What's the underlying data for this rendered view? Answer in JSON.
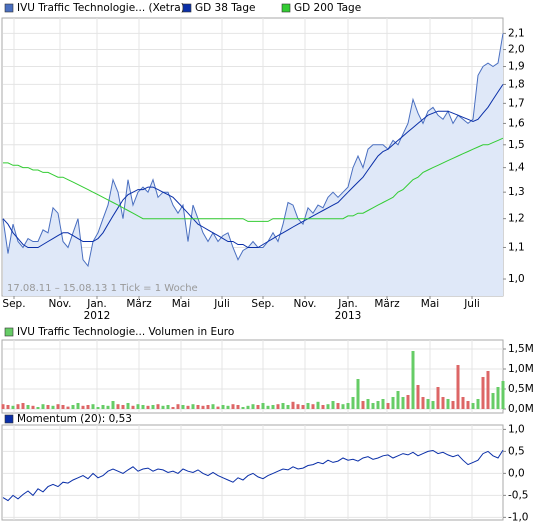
{
  "chart_data": [
    {
      "type": "line",
      "log_scale": true,
      "grid": true,
      "annotation": "17.08.11 – 15.08.13   1 Tick = 1 Woche",
      "xlim": [
        0,
        100
      ],
      "xticks": [
        {
          "value": 2.2,
          "label": "Sep."
        },
        {
          "value": 11.4,
          "label": "Nov."
        },
        {
          "value": 18.8,
          "label": "Jan."
        },
        {
          "value": 27.2,
          "label": "März"
        },
        {
          "value": 35.6,
          "label": "Mai"
        },
        {
          "value": 43.8,
          "label": "Juli"
        },
        {
          "value": 52,
          "label": "Sep."
        },
        {
          "value": 60.4,
          "label": "Nov."
        },
        {
          "value": 69,
          "label": "Jan."
        },
        {
          "value": 76.8,
          "label": "März"
        },
        {
          "value": 85.4,
          "label": "Mai"
        },
        {
          "value": 93.8,
          "label": "Juli"
        }
      ],
      "year_labels": [
        {
          "value": 18.8,
          "label": "2012"
        },
        {
          "value": 69,
          "label": "2013"
        }
      ],
      "ylim": [
        0.95,
        2.2
      ],
      "yticks": [
        {
          "value": 1.0,
          "label": "1,0"
        },
        {
          "value": 1.1,
          "label": "1,1"
        },
        {
          "value": 1.2,
          "label": "1,2"
        },
        {
          "value": 1.3,
          "label": "1,3"
        },
        {
          "value": 1.4,
          "label": "1,4"
        },
        {
          "value": 1.5,
          "label": "1,5"
        },
        {
          "value": 1.6,
          "label": "1,6"
        },
        {
          "value": 1.7,
          "label": "1,7"
        },
        {
          "value": 1.8,
          "label": "1,8"
        },
        {
          "value": 1.9,
          "label": "1,9"
        },
        {
          "value": 2.0,
          "label": "2,0"
        },
        {
          "value": 2.1,
          "label": "2,1"
        }
      ],
      "series": [
        {
          "name": "IVU Traffic Technologie... (Xetra)",
          "color": "#4a6fc0",
          "area_color": "#dfe8f8",
          "values": [
            1.2,
            1.08,
            1.18,
            1.12,
            1.1,
            1.13,
            1.12,
            1.12,
            1.16,
            1.15,
            1.24,
            1.22,
            1.12,
            1.1,
            1.15,
            1.2,
            1.06,
            1.04,
            1.12,
            1.15,
            1.2,
            1.25,
            1.35,
            1.3,
            1.2,
            1.35,
            1.25,
            1.3,
            1.32,
            1.3,
            1.35,
            1.28,
            1.3,
            1.3,
            1.25,
            1.22,
            1.25,
            1.12,
            1.25,
            1.2,
            1.15,
            1.12,
            1.15,
            1.12,
            1.14,
            1.15,
            1.1,
            1.06,
            1.09,
            1.1,
            1.12,
            1.1,
            1.1,
            1.12,
            1.15,
            1.12,
            1.18,
            1.26,
            1.25,
            1.2,
            1.18,
            1.24,
            1.22,
            1.25,
            1.24,
            1.28,
            1.3,
            1.28,
            1.3,
            1.32,
            1.4,
            1.45,
            1.4,
            1.48,
            1.5,
            1.5,
            1.5,
            1.48,
            1.52,
            1.5,
            1.55,
            1.6,
            1.72,
            1.65,
            1.6,
            1.66,
            1.68,
            1.64,
            1.62,
            1.66,
            1.6,
            1.64,
            1.62,
            1.6,
            1.62,
            1.85,
            1.9,
            1.92,
            1.9,
            1.92,
            2.1
          ]
        },
        {
          "name": "GD 38 Tage",
          "color": "#0a2fa8",
          "values": [
            1.2,
            1.18,
            1.15,
            1.13,
            1.11,
            1.1,
            1.1,
            1.1,
            1.11,
            1.12,
            1.13,
            1.14,
            1.15,
            1.15,
            1.14,
            1.13,
            1.12,
            1.12,
            1.12,
            1.13,
            1.15,
            1.18,
            1.21,
            1.24,
            1.27,
            1.29,
            1.3,
            1.31,
            1.31,
            1.32,
            1.32,
            1.31,
            1.3,
            1.29,
            1.28,
            1.26,
            1.24,
            1.22,
            1.2,
            1.18,
            1.17,
            1.16,
            1.15,
            1.14,
            1.13,
            1.12,
            1.12,
            1.11,
            1.11,
            1.1,
            1.1,
            1.1,
            1.11,
            1.12,
            1.13,
            1.14,
            1.15,
            1.16,
            1.17,
            1.18,
            1.19,
            1.2,
            1.21,
            1.22,
            1.23,
            1.24,
            1.25,
            1.26,
            1.28,
            1.3,
            1.32,
            1.34,
            1.36,
            1.39,
            1.42,
            1.45,
            1.47,
            1.48,
            1.5,
            1.52,
            1.54,
            1.56,
            1.58,
            1.6,
            1.62,
            1.64,
            1.65,
            1.66,
            1.66,
            1.66,
            1.65,
            1.64,
            1.63,
            1.62,
            1.61,
            1.62,
            1.65,
            1.68,
            1.72,
            1.76,
            1.8
          ]
        },
        {
          "name": "GD 200 Tage",
          "color": "#33cc33",
          "values": [
            1.42,
            1.42,
            1.41,
            1.41,
            1.4,
            1.4,
            1.39,
            1.39,
            1.38,
            1.38,
            1.37,
            1.36,
            1.36,
            1.35,
            1.34,
            1.33,
            1.32,
            1.31,
            1.3,
            1.29,
            1.28,
            1.27,
            1.26,
            1.25,
            1.24,
            1.23,
            1.22,
            1.21,
            1.2,
            1.2,
            1.2,
            1.2,
            1.2,
            1.2,
            1.2,
            1.2,
            1.2,
            1.2,
            1.2,
            1.2,
            1.2,
            1.2,
            1.2,
            1.2,
            1.2,
            1.2,
            1.2,
            1.2,
            1.2,
            1.19,
            1.19,
            1.19,
            1.19,
            1.19,
            1.2,
            1.2,
            1.2,
            1.2,
            1.2,
            1.2,
            1.2,
            1.2,
            1.2,
            1.2,
            1.2,
            1.2,
            1.2,
            1.2,
            1.2,
            1.21,
            1.21,
            1.22,
            1.22,
            1.23,
            1.24,
            1.25,
            1.26,
            1.27,
            1.28,
            1.3,
            1.31,
            1.33,
            1.35,
            1.36,
            1.38,
            1.39,
            1.4,
            1.41,
            1.42,
            1.43,
            1.44,
            1.45,
            1.46,
            1.47,
            1.48,
            1.49,
            1.5,
            1.5,
            1.51,
            1.52,
            1.53
          ]
        }
      ]
    },
    {
      "type": "bar",
      "grid": true,
      "xlim": [
        0,
        100
      ],
      "ylim": [
        -0.1,
        1.725
      ],
      "yticks": [
        {
          "value": 0,
          "label": "0,0M"
        },
        {
          "value": 0.5,
          "label": "0,5M"
        },
        {
          "value": 1,
          "label": "1,0M"
        },
        {
          "value": 1.5,
          "label": "1,5M"
        }
      ],
      "series": [
        {
          "name": "IVU Traffic Technologie... Volumen in Euro",
          "color": "#66cc66",
          "values": [
            0.12,
            0.1,
            0.08,
            0.12,
            0.15,
            0.1,
            0.08,
            0.05,
            0.12,
            0.1,
            0.08,
            0.12,
            0.1,
            0.06,
            0.1,
            0.15,
            0.08,
            0.1,
            0.12,
            0.05,
            0.1,
            0.08,
            0.2,
            0.12,
            0.1,
            0.15,
            0.08,
            0.12,
            0.1,
            0.08,
            0.1,
            0.12,
            0.08,
            0.1,
            0.05,
            0.12,
            0.1,
            0.08,
            0.12,
            0.1,
            0.08,
            0.1,
            0.12,
            0.06,
            0.1,
            0.08,
            0.12,
            0.1,
            0.05,
            0.08,
            0.12,
            0.1,
            0.15,
            0.08,
            0.1,
            0.12,
            0.15,
            0.1,
            0.18,
            0.12,
            0.1,
            0.15,
            0.12,
            0.18,
            0.1,
            0.12,
            0.2,
            0.15,
            0.12,
            0.15,
            0.3,
            0.75,
            0.2,
            0.25,
            0.15,
            0.2,
            0.25,
            0.15,
            0.3,
            0.45,
            0.3,
            0.35,
            1.45,
            0.6,
            0.3,
            0.25,
            0.2,
            0.55,
            0.3,
            0.25,
            0.2,
            1.1,
            0.3,
            0.2,
            0.15,
            0.25,
            0.8,
            0.95,
            0.4,
            0.55,
            0.7
          ],
          "colors": [
            "#dd6666",
            "#dd6666",
            "#66cc66",
            "#dd6666",
            "#dd6666",
            "#66cc66",
            "#dd6666",
            "#66cc66",
            "#66cc66",
            "#dd6666",
            "#66cc66",
            "#dd6666",
            "#dd6666",
            "#dd6666",
            "#66cc66",
            "#66cc66",
            "#dd6666",
            "#dd6666",
            "#66cc66",
            "#66cc66",
            "#66cc66",
            "#66cc66",
            "#66cc66",
            "#dd6666",
            "#dd6666",
            "#66cc66",
            "#dd6666",
            "#66cc66",
            "#66cc66",
            "#dd6666",
            "#66cc66",
            "#dd6666",
            "#66cc66",
            "#66cc66",
            "#dd6666",
            "#dd6666",
            "#66cc66",
            "#dd6666",
            "#66cc66",
            "#dd6666",
            "#dd6666",
            "#dd6666",
            "#66cc66",
            "#dd6666",
            "#66cc66",
            "#66cc66",
            "#dd6666",
            "#dd6666",
            "#66cc66",
            "#66cc66",
            "#66cc66",
            "#dd6666",
            "#66cc66",
            "#66cc66",
            "#66cc66",
            "#dd6666",
            "#66cc66",
            "#66cc66",
            "#dd6666",
            "#dd6666",
            "#dd6666",
            "#66cc66",
            "#dd6666",
            "#66cc66",
            "#dd6666",
            "#66cc66",
            "#66cc66",
            "#dd6666",
            "#66cc66",
            "#66cc66",
            "#66cc66",
            "#66cc66",
            "#dd6666",
            "#66cc66",
            "#66cc66",
            "#66cc66",
            "#66cc66",
            "#dd6666",
            "#66cc66",
            "#66cc66",
            "#66cc66",
            "#dd6666",
            "#66cc66",
            "#dd6666",
            "#dd6666",
            "#66cc66",
            "#66cc66",
            "#dd6666",
            "#dd6666",
            "#66cc66",
            "#dd6666",
            "#dd6666",
            "#dd6666",
            "#dd6666",
            "#66cc66",
            "#66cc66",
            "#dd6666",
            "#dd6666",
            "#66cc66",
            "#66cc66",
            "#66cc66"
          ]
        }
      ]
    },
    {
      "type": "line",
      "grid": true,
      "xlim": [
        0,
        100
      ],
      "ylim": [
        -1.06,
        1.1
      ],
      "yticks": [
        {
          "value": -1,
          "label": "-1,0"
        },
        {
          "value": -0.5,
          "label": "-0,5"
        },
        {
          "value": 0,
          "label": "0,0"
        },
        {
          "value": 0.5,
          "label": "0,5"
        },
        {
          "value": 1,
          "label": "1,0"
        }
      ],
      "series": [
        {
          "name": "Momentum (20): 0,53",
          "color": "#0a2fa8",
          "values": [
            -0.55,
            -0.62,
            -0.5,
            -0.58,
            -0.48,
            -0.4,
            -0.5,
            -0.35,
            -0.42,
            -0.3,
            -0.25,
            -0.3,
            -0.2,
            -0.22,
            -0.15,
            -0.1,
            -0.05,
            -0.12,
            0.0,
            -0.1,
            -0.05,
            0.05,
            0.1,
            0.05,
            0.0,
            0.08,
            0.15,
            0.05,
            0.1,
            0.12,
            0.05,
            0.1,
            0.08,
            0.02,
            0.05,
            0.0,
            0.1,
            0.05,
            0.02,
            0.08,
            0.0,
            -0.05,
            0.02,
            -0.05,
            -0.1,
            -0.15,
            -0.2,
            -0.1,
            -0.15,
            -0.05,
            0.0,
            -0.08,
            -0.12,
            -0.05,
            0.0,
            0.05,
            0.1,
            0.08,
            0.15,
            0.1,
            0.12,
            0.18,
            0.2,
            0.25,
            0.22,
            0.3,
            0.25,
            0.28,
            0.35,
            0.3,
            0.32,
            0.28,
            0.35,
            0.38,
            0.32,
            0.35,
            0.4,
            0.42,
            0.35,
            0.4,
            0.45,
            0.42,
            0.48,
            0.4,
            0.45,
            0.5,
            0.52,
            0.45,
            0.48,
            0.42,
            0.38,
            0.42,
            0.3,
            0.2,
            0.25,
            0.3,
            0.45,
            0.5,
            0.4,
            0.35,
            0.53
          ]
        }
      ]
    }
  ]
}
